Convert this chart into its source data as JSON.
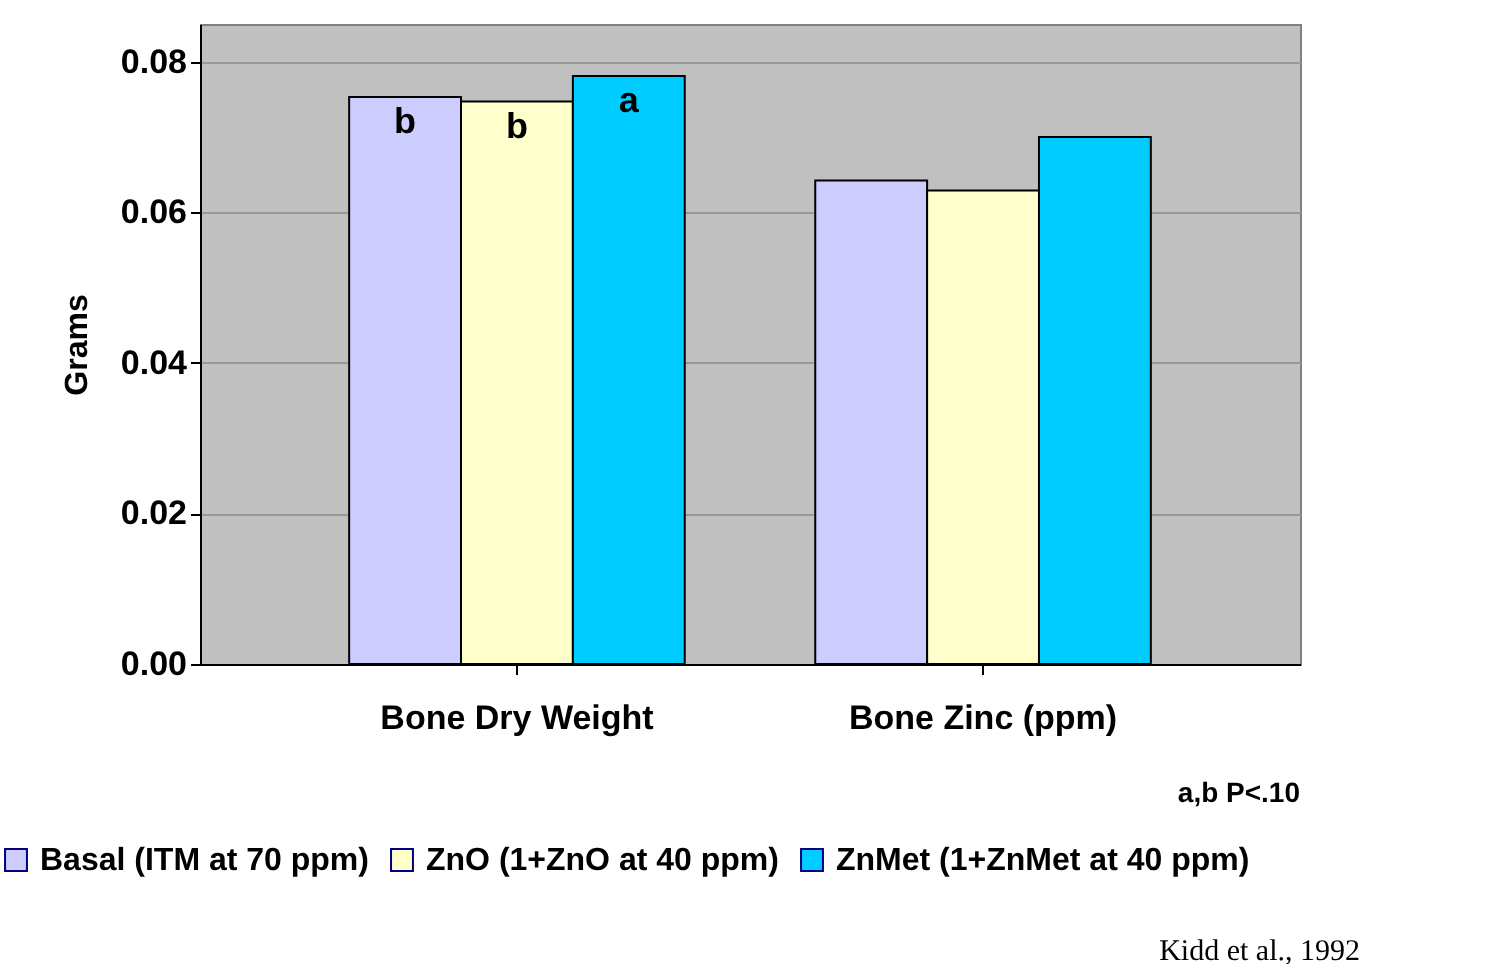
{
  "chart_data": {
    "type": "bar",
    "ylabel": "Grams",
    "categories": [
      "Bone Dry Weight",
      "Bone Zinc (ppm)"
    ],
    "series": [
      {
        "name": "Basal (ITM at 70 ppm)",
        "color": "#ccccff",
        "values": [
          0.0753,
          0.0642
        ]
      },
      {
        "name": "ZnO (1+ZnO at 40 ppm)",
        "color": "#ffffcc",
        "values": [
          0.0747,
          0.0629
        ]
      },
      {
        "name": "ZnMet (1+ZnMet at 40 ppm)",
        "color": "#00ccff",
        "values": [
          0.0781,
          0.07
        ]
      }
    ],
    "ylim": [
      0,
      0.085
    ],
    "yticks": [
      {
        "value": 0,
        "label": "0.00"
      },
      {
        "value": 0.02,
        "label": "0.02"
      },
      {
        "value": 0.04,
        "label": "0.04"
      },
      {
        "value": 0.06,
        "label": "0.06"
      },
      {
        "value": 0.08,
        "label": "0.08"
      }
    ],
    "grid": "y",
    "legend": "bottom",
    "annotations": [
      "b",
      "b",
      "a",
      "a,b P<.10",
      "Kidd et al., 1992"
    ]
  }
}
